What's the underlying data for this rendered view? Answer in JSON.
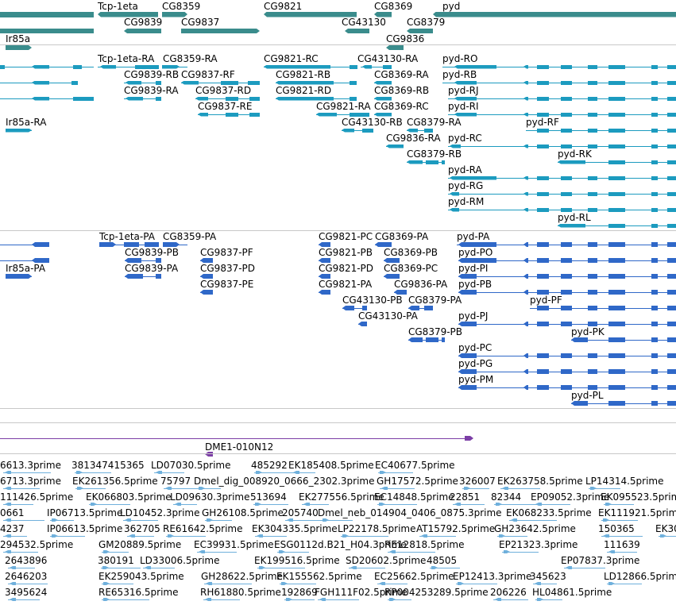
{
  "genes": [
    "Tcp-1eta",
    "CG8359",
    "CG9821",
    "CG8369",
    "pyd",
    "CG9839",
    "CG9837",
    "CG43130",
    "CG8379",
    "Ir85a",
    "CG9836"
  ],
  "rna_transcripts": [
    "Tcp-1eta-RA",
    "CG8359-RA",
    "CG9821-RC",
    "CG43130-RA",
    "pyd-RO",
    "CG9839-RB",
    "CG9837-RF",
    "CG9821-RB",
    "CG8369-RA",
    "pyd-RB",
    "CG9839-RA",
    "CG9837-RD",
    "CG9821-RD",
    "CG8369-RB",
    "pyd-RJ",
    "CG9837-RE",
    "CG9821-RA",
    "CG8369-RC",
    "pyd-RI",
    "Ir85a-RA",
    "CG43130-RB",
    "CG8379-RA",
    "pyd-RF",
    "CG9836-RA",
    "pyd-RC",
    "CG8379-RB",
    "pyd-RK",
    "pyd-RA",
    "pyd-RG",
    "pyd-RM",
    "pyd-RL"
  ],
  "protein_products": [
    "Tcp-1eta-PA",
    "CG8359-PA",
    "CG9821-PC",
    "CG8369-PA",
    "pyd-PA",
    "CG9839-PB",
    "CG9837-PF",
    "CG9821-PB",
    "CG8369-PB",
    "pyd-PO",
    "Ir85a-PA",
    "CG9839-PA",
    "CG9837-PD",
    "CG9821-PD",
    "CG8369-PC",
    "pyd-PI",
    "CG9837-PE",
    "CG9821-PA",
    "CG9836-PA",
    "pyd-PB",
    "CG43130-PB",
    "CG8379-PA",
    "pyd-PF",
    "CG43130-PA",
    "pyd-PJ",
    "CG8379-PB",
    "pyd-PK",
    "pyd-PC",
    "pyd-PG",
    "pyd-PM",
    "pyd-PL"
  ],
  "clone": "DME1-010N12",
  "est_labels": [
    "6613.3prime",
    "381347415365",
    "LD07030.5prime",
    "485292",
    "EK185408.5prime",
    "EC40677.5prime",
    "6713.3prime",
    "EK261356.5prime",
    "75797",
    "Dmel_dig_008920_0666_2302.3prime",
    "GH17572.5prime",
    "326007",
    "EK263758.5prime",
    "LP14314.5prime",
    "111426.5prime",
    "EK066803.5prime",
    "LD09630.3prime",
    "513694",
    "EK277556.5prime",
    "EC14848.5prime",
    "22851",
    "82344",
    "EP09052.3prime",
    "EK095523.5prime",
    "0661",
    "IP06713.5prime",
    "LD10452.3prime",
    "GH26108.5prime",
    "205740",
    "Dmel_neb_014904_0406_0875.3prime",
    "EK068233.5prime",
    "EK111921.5prime",
    "4237",
    "IP06613.5prime",
    "362705",
    "RE61642.5prime",
    "EK304335.5prime",
    "LP22178.5prime",
    "AT15792.5prime",
    "GH23642.5prime",
    "150365",
    "EK30",
    "294532.5prime",
    "GM20889.5prime",
    "EC39931.5prime",
    "ESG0112d.B21_H04.3prime",
    "RE12818.5prime",
    "EP21323.3prime",
    "111639",
    "2643896",
    "380191",
    "LD33006.5prime",
    "EK199516.5prime",
    "SD20602.5prime",
    "48505",
    "EP07837.3prime",
    "2646203",
    "EK259043.5prime",
    "GH28622.5prime",
    "EK155562.5prime",
    "EC25662.5prime",
    "EP12413.3prime",
    "345623",
    "LD12866.5prime",
    "3495624",
    "RE65316.5prime",
    "RH61880.5prime",
    "192869",
    "FGH111F02.5prime",
    "RP004253289.5prime",
    "206226",
    "HL04861.5prime"
  ],
  "colors": {
    "gene": "#3a8c8c",
    "rna": "#1c9bbf",
    "protein": "#2f68c8",
    "clone": "#7c3ea6",
    "est": "#6fb0dc",
    "separator": "#c8c8c8"
  }
}
